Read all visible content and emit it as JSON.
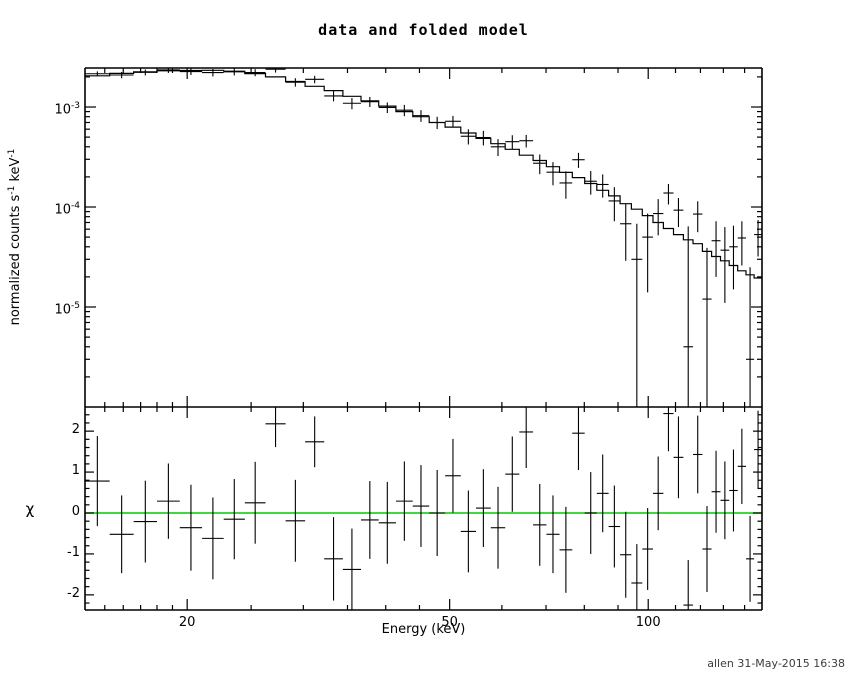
{
  "title": "data and folded model",
  "footer": {
    "timestamp": "allen 31-May-2015 16:38"
  },
  "colors": {
    "foreground": "#000000",
    "background": "#ffffff",
    "zero_line": "#00cc00",
    "timestamp": "#3d3d3d"
  },
  "axes": {
    "x": {
      "label": "Energy (keV)",
      "scale": "log",
      "min": 14.0,
      "max": 148.77,
      "major_ticks": [
        20,
        50,
        100
      ],
      "major_labels": [
        "20",
        "50",
        "100"
      ],
      "minor_ticks": [
        15,
        16,
        17,
        18,
        19,
        25,
        30,
        35,
        40,
        45,
        60,
        70,
        80,
        90,
        110,
        120,
        130,
        140
      ]
    },
    "y_top": {
      "label": "normalized counts s^-1 keV^-1",
      "scale": "log",
      "min": 1e-06,
      "max": 0.002455,
      "major_ticks": [
        {
          "value": 0.001,
          "base": "10",
          "exp": "-3"
        },
        {
          "value": 0.0001,
          "base": "10",
          "exp": "-4"
        },
        {
          "value": 1e-05,
          "base": "10",
          "exp": "-5"
        }
      ],
      "minor_ticks": [
        2e-06,
        3e-06,
        4e-06,
        5e-06,
        6e-06,
        7e-06,
        8e-06,
        9e-06,
        2e-05,
        3e-05,
        4e-05,
        5e-05,
        6e-05,
        7e-05,
        8e-05,
        9e-05,
        0.0002,
        0.0003,
        0.0004,
        0.0005,
        0.0006,
        0.0007,
        0.0008,
        0.0009,
        0.002
      ]
    },
    "y_bot": {
      "label": "χ",
      "scale": "linear",
      "min": -2.37,
      "max": 2.59,
      "major_ticks": [
        -2,
        -1,
        0,
        1,
        2
      ],
      "major_labels": [
        "-2",
        "-1",
        "0",
        "1",
        "2"
      ],
      "minor_step": 0.2,
      "zero_line_value": 0
    }
  },
  "chart_data": [
    {
      "type": "line",
      "panel": "spectrum",
      "title": "data and folded model",
      "xlabel": "",
      "ylabel": "normalized counts s^-1 keV^-1",
      "xlim": [
        14.0,
        148.77
      ],
      "ylim": [
        1e-06,
        0.002455
      ],
      "x_scale": "log",
      "y_scale": "log",
      "grid": false,
      "legend": "none",
      "bin_edges_keV": [
        14.0,
        15.26,
        16.59,
        18.0,
        19.49,
        21.07,
        22.72,
        24.46,
        26.29,
        28.2,
        30.19,
        32.27,
        34.44,
        36.69,
        39.03,
        41.45,
        43.96,
        46.55,
        49.22,
        51.98,
        54.81,
        57.72,
        60.71,
        63.77,
        66.9,
        70.1,
        73.37,
        76.71,
        80.11,
        83.57,
        87.09,
        90.66,
        94.29,
        97.96,
        101.68,
        105.44,
        109.24,
        113.07,
        116.94,
        120.83,
        124.76,
        128.71,
        132.69,
        136.68,
        140.7,
        144.73,
        148.77
      ],
      "series": [
        {
          "name": "folded model",
          "style": "histogram-steps",
          "values": [
            0.00205,
            0.00217,
            0.00225,
            0.0023,
            0.00232,
            0.00233,
            0.00228,
            0.00216,
            0.002,
            0.0018,
            0.00161,
            0.00146,
            0.00128,
            0.00115,
            0.00102,
            0.0009,
            0.0008,
            0.0007,
            0.00063,
            0.00055,
            0.000485,
            0.00043,
            0.000378,
            0.00033,
            0.000292,
            0.000253,
            0.000222,
            0.000197,
            0.000172,
            0.000147,
            0.000129,
            0.000108,
            9.5e-05,
            8.2e-05,
            7e-05,
            6.1e-05,
            5.3e-05,
            4.7e-05,
            4.3e-05,
            3.6e-05,
            3.2e-05,
            2.9e-05,
            2.6e-05,
            2.3e-05,
            2.1e-05,
            1.95e-05
          ]
        },
        {
          "name": "data",
          "style": "cross-error-bars",
          "values": [
            0.00215,
            0.00209,
            0.00222,
            0.00235,
            0.00226,
            0.00221,
            0.00225,
            0.00221,
            0.00239,
            0.00177,
            0.00189,
            0.00129,
            0.00109,
            0.00113,
            0.00099,
            0.00093,
            0.00082,
            0.0007,
            0.00072,
            0.00051,
            0.000495,
            0.0004,
            0.00045,
            0.00046,
            0.000274,
            0.000223,
            0.000174,
            0.000297,
            0.000181,
            0.000168,
            0.000115,
            6.8e-05,
            3e-05,
            5e-05,
            8.6e-05,
            0.000138,
            9.3e-05,
            4e-06,
            8.5e-05,
            1.2e-05,
            4.6e-05,
            3.7e-05,
            4e-05,
            4.9e-05,
            3e-06,
            5.3e-05
          ],
          "errors": [
            0.00012,
            0.00015,
            0.00015,
            0.00016,
            0.00017,
            0.00019,
            0.00018,
            0.00018,
            0.00018,
            0.00017,
            0.00016,
            0.00015,
            0.00014,
            0.00013,
            0.00012,
            0.00012,
            0.00011,
            9.8e-05,
            9.5e-05,
            8.8e-05,
            8.2e-05,
            7.7e-05,
            7.2e-05,
            6.6e-05,
            6.1e-05,
            5.8e-05,
            5.3e-05,
            5.1e-05,
            4.8e-05,
            4.4e-05,
            4.3e-05,
            3.9e-05,
            3.8e-05,
            3.6e-05,
            3.4e-05,
            3.2e-05,
            3e-05,
            6e-05,
            2.9e-05,
            2.7e-05,
            2.6e-05,
            2.6e-05,
            2.5e-05,
            2.3e-05,
            2.2e-05,
            2.1e-05
          ]
        }
      ]
    },
    {
      "type": "scatter",
      "panel": "residuals",
      "ylabel": "χ",
      "xlabel": "Energy (keV)",
      "xlim": [
        14.0,
        148.77
      ],
      "ylim": [
        -2.37,
        2.59
      ],
      "x_scale": "log",
      "grid": false,
      "zero_line": 0,
      "series": [
        {
          "name": "chi residuals",
          "style": "cross-error-bars",
          "values": [
            0.78,
            -0.52,
            -0.21,
            0.29,
            -0.36,
            -0.62,
            -0.15,
            0.25,
            2.18,
            -0.19,
            1.74,
            -1.12,
            -1.38,
            -0.17,
            -0.24,
            0.29,
            0.17,
            0.0,
            0.91,
            -0.45,
            0.12,
            -0.36,
            0.95,
            1.98,
            -0.29,
            -0.52,
            -0.9,
            1.95,
            0.0,
            0.48,
            -0.33,
            -1.02,
            -1.71,
            -0.88,
            0.48,
            2.43,
            1.36,
            -2.25,
            1.43,
            -0.88,
            0.52,
            0.31,
            0.55,
            1.14,
            -1.12,
            1.55
          ],
          "errors": [
            1.1,
            0.95,
            1.0,
            0.92,
            1.05,
            1.0,
            0.98,
            1.0,
            0.57,
            1.0,
            0.62,
            1.02,
            1.0,
            0.95,
            1.0,
            0.97,
            1.0,
            1.05,
            0.9,
            1.0,
            0.95,
            1.0,
            0.92,
            0.88,
            1.0,
            0.95,
            1.05,
            0.9,
            1.0,
            0.95,
            1.0,
            1.05,
            0.95,
            1.0,
            0.9,
            0.92,
            1.0,
            1.1,
            0.95,
            1.05,
            1.0,
            0.95,
            1.0,
            0.92,
            1.05,
            0.95
          ]
        }
      ]
    }
  ]
}
